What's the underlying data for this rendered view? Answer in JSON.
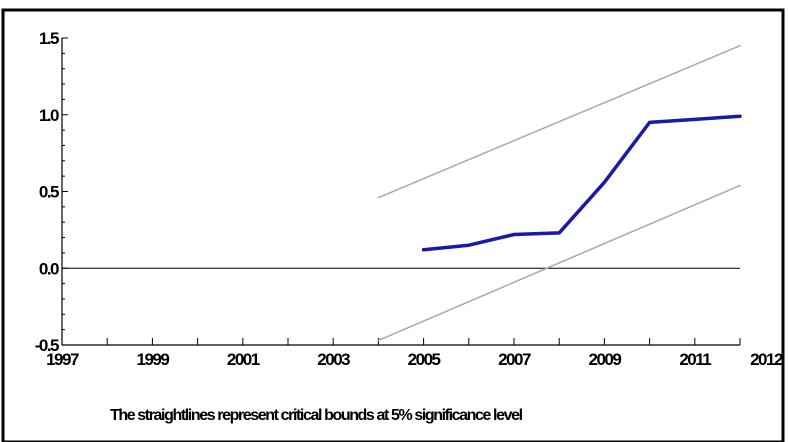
{
  "chart_data": {
    "type": "line",
    "title": "",
    "xlabel": "The straightlines represent critical bounds at 5% significance level",
    "ylabel": "",
    "xlim": [
      1997,
      2012
    ],
    "ylim": [
      -0.5,
      1.5
    ],
    "x_tick_labels": [
      "1997",
      "1999",
      "2001",
      "2003",
      "2005",
      "2007",
      "2009",
      "2011",
      "2012"
    ],
    "y_tick_labels": [
      "1.5",
      "1.0",
      "0.5",
      "0.0",
      "-0.5"
    ],
    "y_tick_values": [
      1.5,
      1.0,
      0.5,
      0.0,
      -0.5
    ],
    "grid": false,
    "reference_line": 0.0,
    "series": [
      {
        "x": [
          2005,
          2006,
          2007,
          2008,
          2009,
          2010,
          2011,
          2012
        ],
        "values": [
          0.12,
          0.15,
          0.22,
          0.23,
          0.56,
          0.95,
          0.97,
          0.99
        ],
        "color": "#1a1aa8",
        "style": "solid-thick"
      },
      {
        "x": [
          2004,
          2012
        ],
        "values": [
          0.46,
          1.45
        ],
        "color": "#a9a9a9",
        "style": "thin"
      },
      {
        "x": [
          2004,
          2012
        ],
        "values": [
          -0.47,
          0.54
        ],
        "color": "#a9a9a9",
        "style": "thin"
      }
    ]
  }
}
